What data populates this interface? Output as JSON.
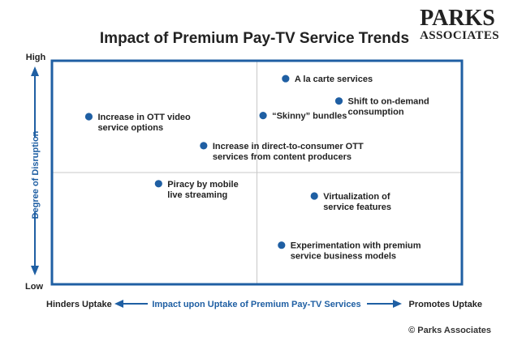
{
  "logo": {
    "line1": "PARKS",
    "line2": "ASSOCIATES"
  },
  "chart_data": {
    "type": "scatter",
    "title": "Impact of Premium Pay-TV Service Trends",
    "xlabel": "Impact upon Uptake of Premium Pay-TV Services",
    "xlabel_left": "Hinders Uptake",
    "xlabel_right": "Promotes Uptake",
    "ylabel": "Degree of Disruption",
    "ylabel_top": "High",
    "ylabel_bottom": "Low",
    "xlim": [
      0,
      100
    ],
    "ylim": [
      0,
      100
    ],
    "quadrant_divider": {
      "x": 50,
      "y": 50
    },
    "grid": false,
    "points": [
      {
        "label": [
          "A la carte services"
        ],
        "x": 57,
        "y": 92
      },
      {
        "label": [
          "Shift to on-demand",
          "consumption"
        ],
        "x": 70,
        "y": 82
      },
      {
        "label": [
          "“Skinny” bundles"
        ],
        "x": 51.5,
        "y": 75.5
      },
      {
        "label": [
          "Increase in OTT video",
          "service options"
        ],
        "x": 9,
        "y": 75
      },
      {
        "label": [
          "Increase in direct-to-consumer OTT",
          "services from content producers"
        ],
        "x": 37,
        "y": 62
      },
      {
        "label": [
          "Piracy by mobile",
          "live streaming"
        ],
        "x": 26,
        "y": 45
      },
      {
        "label": [
          "Virtualization of",
          "service features"
        ],
        "x": 64,
        "y": 39.5
      },
      {
        "label": [
          "Experimentation with premium",
          "service business models"
        ],
        "x": 56,
        "y": 17.5
      }
    ]
  },
  "colors": {
    "frame": "#1f5fa3",
    "marker": "#1f5fa3",
    "divider": "#c8c8c8",
    "text": "#222222"
  },
  "copyright": "© Parks Associates"
}
